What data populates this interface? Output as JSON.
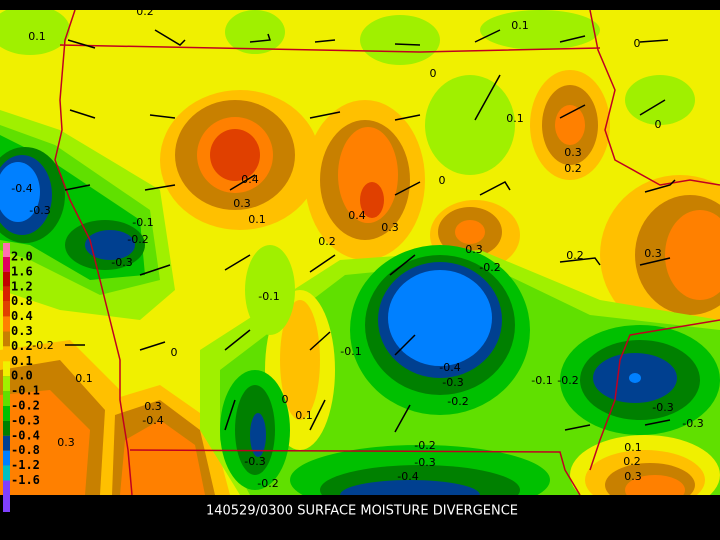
{
  "caption": "140529/0300 SURFACE MOISTURE DIVERGENCE",
  "colorbar": {
    "labels": [
      "2.0",
      "1.6",
      "1.2",
      "0.8",
      "0.4",
      "0.3",
      "0.2",
      "0.1",
      "0.0",
      "-0.1",
      "-0.2",
      "-0.3",
      "-0.4",
      "-0.8",
      "-1.2",
      "-1.6"
    ],
    "colors": [
      "#ff70b0",
      "#e00060",
      "#c00000",
      "#d82000",
      "#e04000",
      "#ff8000",
      "#c88000",
      "#ffc000",
      "#f0f000",
      "#a0f000",
      "#60e000",
      "#00c000",
      "#008000",
      "#004090",
      "#0080ff",
      "#00c0c0",
      "#8040ff"
    ]
  },
  "contour_labels": [
    "0.2",
    "0.1",
    "0.1",
    "0",
    "0",
    "0.1",
    "0",
    "0.4",
    "0.3",
    "0.1",
    "0.4",
    "0.3",
    "0.3",
    "0.2",
    "0",
    "-0.4",
    "-0.3",
    "-0.1",
    "-0.2",
    "-0.3",
    "0.2",
    "0.3",
    "-0.2",
    "0.2",
    "0.3",
    "-0.1",
    "-0.1",
    "0",
    "-0.2",
    "0.1",
    "-0.4",
    "-0.3",
    "-0.2",
    "-0.1",
    "-0.2",
    "0.3",
    "-0.4",
    "0.3",
    "0",
    "0.1",
    "-0.3",
    "-0.3",
    "-0.2",
    "-0.3",
    "-0.4",
    "-0.3",
    "-0.2",
    "0.1",
    "0.2",
    "0.3"
  ]
}
